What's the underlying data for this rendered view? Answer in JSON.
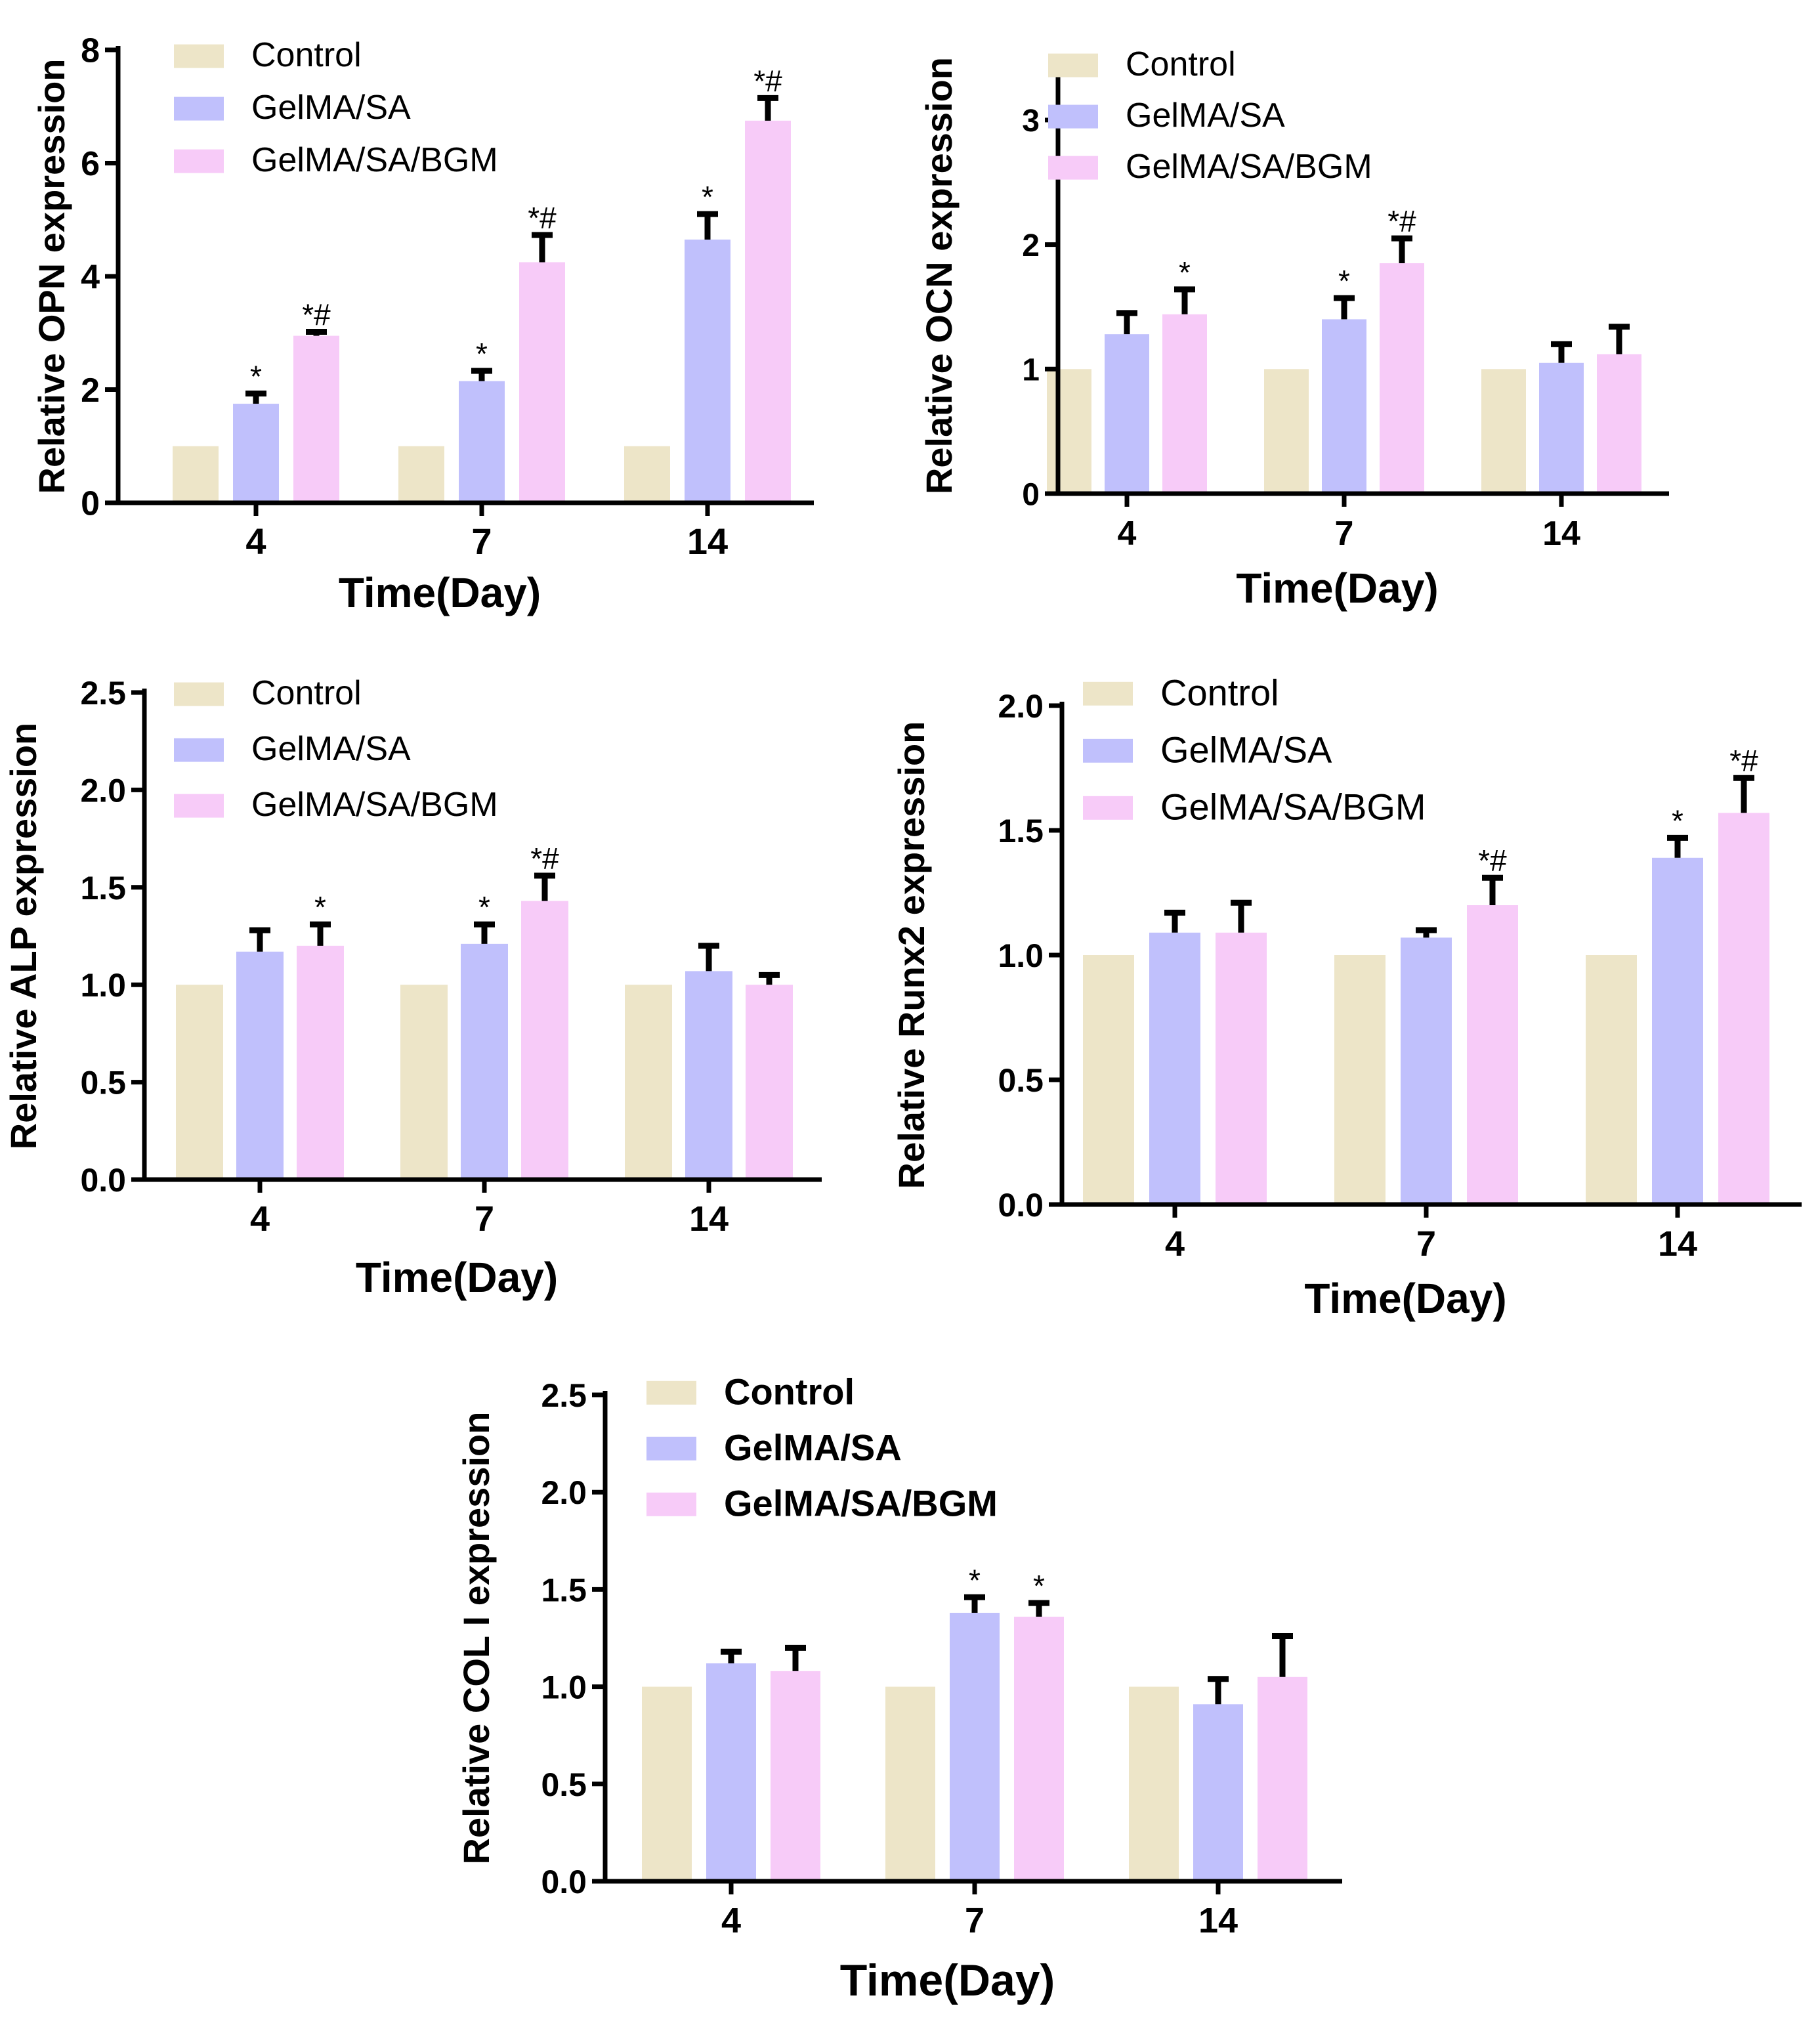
{
  "colors": {
    "Control": "#ede5c8",
    "GelMA/SA": "#c0c0fc",
    "GelMA/SA/BGM": "#f7cbf8",
    "axis": "#000000"
  },
  "chart_data": [
    {
      "type": "bar",
      "xlabel": "Time(Day)",
      "ylabel": "Relative OPN expression",
      "categories": [
        "4",
        "7",
        "14"
      ],
      "ylim": [
        0,
        8
      ],
      "yticks": [
        0,
        2,
        4,
        6,
        8
      ],
      "legend": "top-left",
      "series": [
        {
          "name": "Control",
          "values": [
            1,
            1,
            1
          ],
          "errors": [
            0,
            0,
            0
          ],
          "marks": [
            "",
            "",
            ""
          ]
        },
        {
          "name": "GelMA/SA",
          "values": [
            1.75,
            2.15,
            4.65
          ],
          "errors": [
            0.18,
            0.18,
            0.45
          ],
          "marks": [
            "*",
            "*",
            "*"
          ]
        },
        {
          "name": "GelMA/SA/BGM",
          "values": [
            2.95,
            4.25,
            6.75
          ],
          "errors": [
            0.07,
            0.48,
            0.4
          ],
          "marks": [
            "*#",
            "*#",
            "*#"
          ]
        }
      ]
    },
    {
      "type": "bar",
      "xlabel": "Time(Day)",
      "ylabel": "Relative OCN expression",
      "categories": [
        "4",
        "7",
        "14"
      ],
      "ylim": [
        0,
        3.5
      ],
      "yticks": [
        0,
        1,
        2,
        3
      ],
      "legend": "top-left",
      "series": [
        {
          "name": "Control",
          "values": [
            1,
            1,
            1
          ],
          "errors": [
            0,
            0,
            0
          ],
          "marks": [
            "",
            "",
            ""
          ]
        },
        {
          "name": "GelMA/SA",
          "values": [
            1.28,
            1.4,
            1.05
          ],
          "errors": [
            0.17,
            0.17,
            0.15
          ],
          "marks": [
            "",
            "*",
            ""
          ]
        },
        {
          "name": "GelMA/SA/BGM",
          "values": [
            1.44,
            1.85,
            1.12
          ],
          "errors": [
            0.2,
            0.2,
            0.22
          ],
          "marks": [
            "*",
            "*#",
            ""
          ]
        }
      ]
    },
    {
      "type": "bar",
      "xlabel": "Time(Day)",
      "ylabel": "Relative ALP expression",
      "categories": [
        "4",
        "7",
        "14"
      ],
      "ylim": [
        0,
        2.5
      ],
      "yticks": [
        "0.0",
        "0.5",
        "1.0",
        "1.5",
        "2.0",
        "2.5"
      ],
      "legend": "top-left",
      "series": [
        {
          "name": "Control",
          "values": [
            1,
            1,
            1
          ],
          "errors": [
            0,
            0,
            0
          ],
          "marks": [
            "",
            "",
            ""
          ]
        },
        {
          "name": "GelMA/SA",
          "values": [
            1.17,
            1.21,
            1.07
          ],
          "errors": [
            0.11,
            0.1,
            0.13
          ],
          "marks": [
            "",
            "*",
            ""
          ]
        },
        {
          "name": "GelMA/SA/BGM",
          "values": [
            1.2,
            1.43,
            1.0
          ],
          "errors": [
            0.11,
            0.13,
            0.05
          ],
          "marks": [
            "*",
            "*#",
            ""
          ]
        }
      ]
    },
    {
      "type": "bar",
      "xlabel": "Time(Day)",
      "ylabel": "Relative Runx2 expression",
      "categories": [
        "4",
        "7",
        "14"
      ],
      "ylim": [
        0,
        2.0
      ],
      "yticks": [
        "0.0",
        "0.5",
        "1.0",
        "1.5",
        "2.0"
      ],
      "legend": "top-left",
      "series": [
        {
          "name": "Control",
          "values": [
            1,
            1,
            1
          ],
          "errors": [
            0,
            0,
            0
          ],
          "marks": [
            "",
            "",
            ""
          ]
        },
        {
          "name": "GelMA/SA",
          "values": [
            1.09,
            1.07,
            1.39
          ],
          "errors": [
            0.08,
            0.03,
            0.08
          ],
          "marks": [
            "",
            "",
            "*"
          ]
        },
        {
          "name": "GelMA/SA/BGM",
          "values": [
            1.09,
            1.2,
            1.57
          ],
          "errors": [
            0.12,
            0.11,
            0.14
          ],
          "marks": [
            "",
            "*#",
            "*#"
          ]
        }
      ]
    },
    {
      "type": "bar",
      "xlabel": "Time(Day)",
      "ylabel": "Relative COL I expression",
      "categories": [
        "4",
        "7",
        "14"
      ],
      "ylim": [
        0,
        2.5
      ],
      "yticks": [
        "0.0",
        "0.5",
        "1.0",
        "1.5",
        "2.0",
        "2.5"
      ],
      "legend": "top-left",
      "series": [
        {
          "name": "Control",
          "values": [
            1,
            1,
            1
          ],
          "errors": [
            0,
            0,
            0
          ],
          "marks": [
            "",
            "",
            ""
          ]
        },
        {
          "name": "GelMA/SA",
          "values": [
            1.12,
            1.38,
            0.91
          ],
          "errors": [
            0.06,
            0.08,
            0.13
          ],
          "marks": [
            "",
            "*",
            ""
          ]
        },
        {
          "name": "GelMA/SA/BGM",
          "values": [
            1.08,
            1.36,
            1.05
          ],
          "errors": [
            0.12,
            0.07,
            0.21
          ],
          "marks": [
            "",
            "*",
            ""
          ]
        }
      ]
    }
  ]
}
